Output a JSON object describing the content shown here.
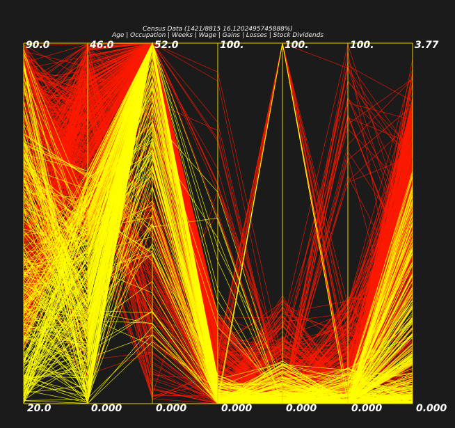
{
  "chart_data": {
    "type": "parallel-coordinates",
    "title": "Census Data (1421/8815 16.1202495745888%)",
    "subtitle": "Age | Occupation | Weeks | Wage | Gains | Losses | Stock Dividends",
    "axes": [
      {
        "max_label": "90.0",
        "min_label": "20.0"
      },
      {
        "max_label": "46.0",
        "min_label": "0.000"
      },
      {
        "max_label": "52.0",
        "min_label": "0.000"
      },
      {
        "max_label": "100.",
        "min_label": "0.000"
      },
      {
        "max_label": "100.",
        "min_label": "0.000"
      },
      {
        "max_label": "100.",
        "min_label": "0.000"
      },
      {
        "max_label": "3.77",
        "min_label": "0.000"
      }
    ],
    "selection": {
      "selected": 1421,
      "total": 8815,
      "percent": 16.1202495745888
    },
    "colors": {
      "background": "#1b1b1b",
      "axis": "#e8d300",
      "unselected": "#ff1a00",
      "selected": "#ffff00",
      "text": "#ffffff"
    }
  }
}
